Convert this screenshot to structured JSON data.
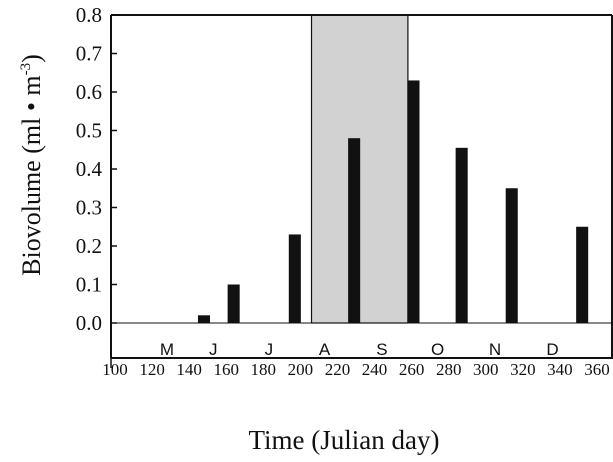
{
  "chart_data": {
    "type": "bar",
    "xlabel": "Time (Julian day)",
    "ylabel_main": "Biovolume (ml • m",
    "ylabel_sup": "-3",
    "ylabel_close": ")",
    "ylim": [
      -0.1,
      0.8
    ],
    "xlim": [
      100,
      360
    ],
    "y_ticks": [
      "0.0",
      "0.1",
      "0.2",
      "0.3",
      "0.4",
      "0.5",
      "0.6",
      "0.7",
      "0.8"
    ],
    "y_tick_values": [
      0.0,
      0.1,
      0.2,
      0.3,
      0.4,
      0.5,
      0.6,
      0.7,
      0.8
    ],
    "x_ticks": [
      "100",
      "120",
      "140",
      "160",
      "180",
      "200",
      "220",
      "240",
      "260",
      "280",
      "300",
      "320",
      "340",
      "360"
    ],
    "x_tick_values": [
      100,
      120,
      140,
      160,
      180,
      200,
      220,
      240,
      260,
      280,
      300,
      320,
      340,
      360
    ],
    "x": [
      148,
      164,
      197,
      229,
      261,
      287,
      314,
      352
    ],
    "values": [
      0.02,
      0.1,
      0.23,
      0.48,
      0.63,
      0.455,
      0.35,
      0.25
    ],
    "bar_width_days": 6.5,
    "shaded_region": [
      206,
      258
    ],
    "months": [
      {
        "label": "M",
        "x": 128
      },
      {
        "label": "J",
        "x": 153
      },
      {
        "label": "J",
        "x": 183
      },
      {
        "label": "A",
        "x": 213
      },
      {
        "label": "S",
        "x": 244
      },
      {
        "label": "O",
        "x": 274
      },
      {
        "label": "N",
        "x": 305
      },
      {
        "label": "D",
        "x": 336
      }
    ],
    "grid": false,
    "colors": {
      "bar": "#111111",
      "shade": "#d2d2d2",
      "axis": "#111111"
    }
  }
}
